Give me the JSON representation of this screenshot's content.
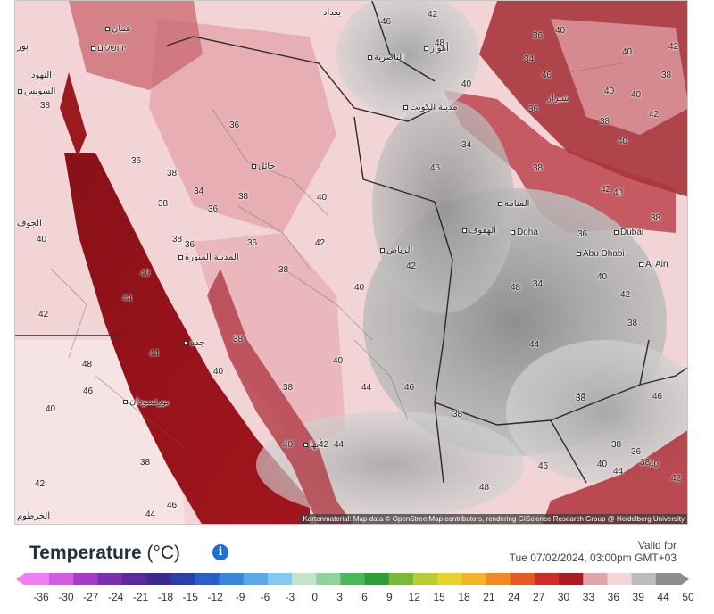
{
  "map": {
    "attribution": "Kartenmaterial: Map data © OpenStreetMap contributors, rendering GIScience Research Group @ Heidelberg University",
    "top_strip_colors": [
      "#e8e8e8",
      "#d9534f",
      "#3a7fd5",
      "#3a7fd5",
      "#9aa9b8"
    ],
    "cities": [
      {
        "name": "عمان",
        "dot": true
      },
      {
        "name": "ירושלים",
        "dot": true
      },
      {
        "name": "السويس",
        "dot": true
      },
      {
        "name": "الناصرية",
        "dot": true
      },
      {
        "name": "أهواز",
        "dot": true
      },
      {
        "name": "بغداد",
        "dot": false
      },
      {
        "name": "مدينة الكويت",
        "dot": true
      },
      {
        "name": "حائل",
        "dot": true
      },
      {
        "name": "المدينة المنورة",
        "dot": true
      },
      {
        "name": "جدة",
        "dot": true
      },
      {
        "name": "بورتسودان",
        "dot": true
      },
      {
        "name": "الرياض",
        "dot": true
      },
      {
        "name": "الهفوف",
        "dot": true
      },
      {
        "name": "المنامة",
        "dot": true
      },
      {
        "name": "Doha",
        "dot": true
      },
      {
        "name": "Dubai",
        "dot": true
      },
      {
        "name": "Abu Dhabi",
        "dot": true
      },
      {
        "name": "Al Ain",
        "dot": true
      },
      {
        "name": "أبها",
        "dot": true
      },
      {
        "name": "شیراز",
        "dot": false
      },
      {
        "name": "النهود",
        "dot": false
      },
      {
        "name": "بور",
        "dot": false
      },
      {
        "name": "الجوف",
        "dot": false
      },
      {
        "name": "الخرطوم",
        "dot": false
      }
    ],
    "temperature_labels": [
      "46",
      "42",
      "48",
      "40",
      "40",
      "38",
      "36",
      "34",
      "42",
      "40",
      "38",
      "36",
      "40",
      "36",
      "36",
      "38",
      "38",
      "34",
      "38",
      "36",
      "40",
      "38",
      "36",
      "40",
      "46",
      "34",
      "38",
      "42",
      "40",
      "38",
      "40",
      "42",
      "44",
      "38",
      "40",
      "48",
      "46",
      "40",
      "38",
      "42",
      "44",
      "46",
      "38",
      "40",
      "44",
      "46",
      "38",
      "40",
      "42",
      "44",
      "48",
      "46",
      "42",
      "38",
      "40",
      "44",
      "46",
      "42",
      "38",
      "40",
      "36",
      "34",
      "38",
      "42",
      "44",
      "40",
      "36",
      "42",
      "38",
      "40",
      "46",
      "48",
      "44",
      "40",
      "42",
      "38",
      "36",
      "38",
      "40",
      "42",
      "44"
    ]
  },
  "legend": {
    "title": "Temperature",
    "unit": "(°C)",
    "info_icon": "info-icon",
    "valid_label": "Valid for",
    "valid_time": "Tue 07/02/2024, 03:00pm GMT+03",
    "ticks": [
      "-36",
      "-30",
      "-27",
      "-24",
      "-21",
      "-18",
      "-15",
      "-12",
      "-9",
      "-6",
      "-3",
      "0",
      "3",
      "6",
      "9",
      "12",
      "15",
      "18",
      "21",
      "24",
      "27",
      "30",
      "33",
      "36",
      "39",
      "44",
      "50"
    ],
    "colors": [
      "#f07ef0",
      "#d25be0",
      "#a53cc8",
      "#7a2fb0",
      "#5a2a9c",
      "#3d2a8e",
      "#2a3fa8",
      "#2a5fc4",
      "#3b86d8",
      "#5aa8e6",
      "#86c7ef",
      "#c5e3c8",
      "#8fd39a",
      "#4bb85c",
      "#2f9d3a",
      "#7ab83a",
      "#b9cc35",
      "#e6d32c",
      "#f2b52a",
      "#f08a26",
      "#e45a24",
      "#cc2d25",
      "#a81c22",
      "#e0a3a8",
      "#f2d6d8",
      "#bcbcbc",
      "#8c8c8c"
    ]
  }
}
